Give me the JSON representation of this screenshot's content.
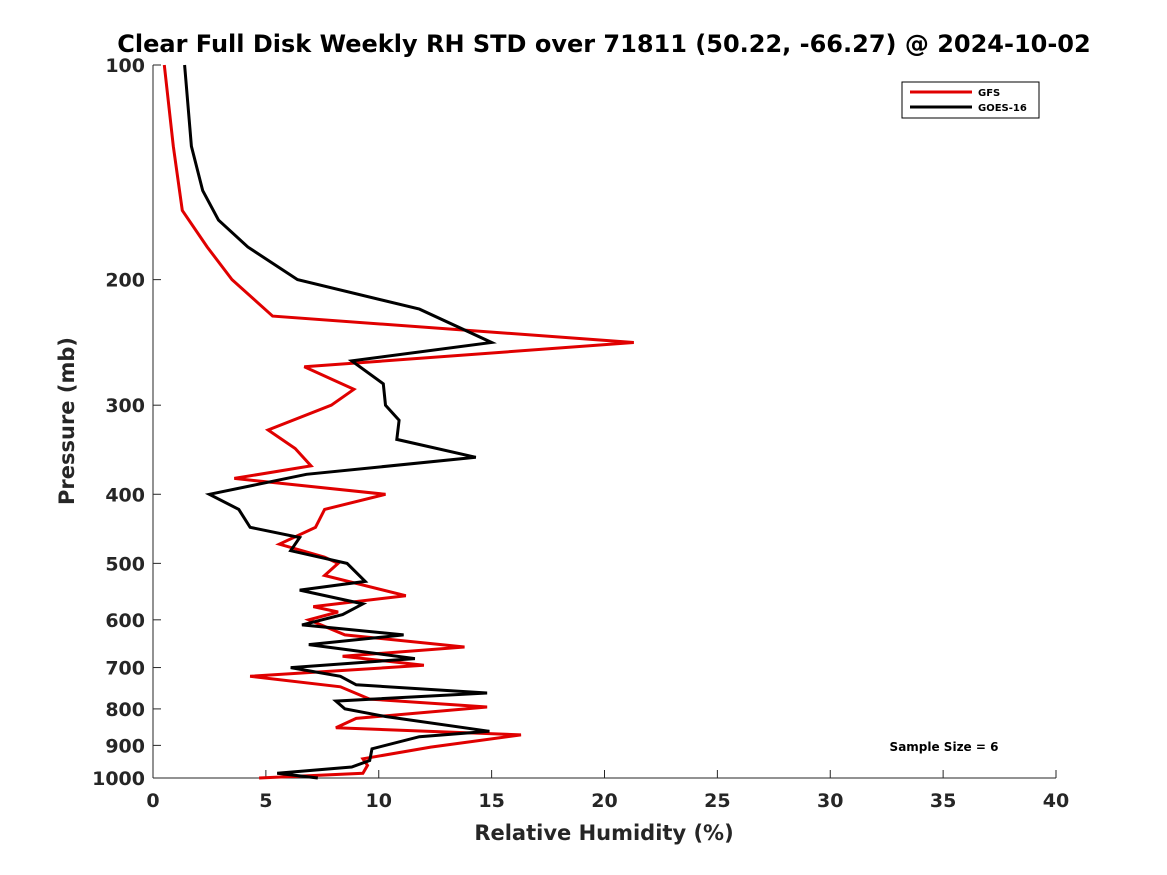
{
  "chart_data": {
    "type": "line",
    "title": "Clear Full Disk Weekly RH STD over 71811 (50.22, -66.27) @ 2024-10-02",
    "xlabel": "Relative Humidity (%)",
    "ylabel": "Pressure (mb)",
    "xlim": [
      0,
      40
    ],
    "ylim": [
      100,
      1000
    ],
    "y_scale": "log",
    "y_reversed": true,
    "x_ticks": [
      0,
      5,
      10,
      15,
      20,
      25,
      30,
      35,
      40
    ],
    "y_ticks": [
      100,
      200,
      300,
      400,
      500,
      600,
      700,
      800,
      900,
      1000
    ],
    "grid": false,
    "legend_position": "top-right",
    "annotation": "Sample Size = 6",
    "series": [
      {
        "name": "GFS",
        "color": "#e00000",
        "x": [
          0.5,
          0.9,
          1.3,
          2.4,
          3.5,
          5.3,
          21.3,
          6.7,
          8.9,
          7.9,
          5.1,
          6.3,
          7.0,
          3.6,
          10.3,
          7.6,
          7.2,
          5.6,
          7.6,
          8.2,
          7.6,
          11.2,
          7.1,
          8.2,
          6.9,
          8.5,
          13.8,
          8.4,
          12.0,
          4.3,
          8.3,
          9.6,
          14.8,
          9.0,
          8.1,
          16.3,
          12.3,
          9.3,
          9.5,
          9.3,
          4.7
        ],
        "y": [
          100,
          130,
          160,
          180,
          200,
          225,
          245,
          265,
          285,
          300,
          325,
          345,
          365,
          380,
          400,
          420,
          445,
          470,
          490,
          500,
          520,
          555,
          575,
          585,
          600,
          630,
          655,
          675,
          695,
          720,
          745,
          775,
          795,
          825,
          850,
          870,
          905,
          940,
          960,
          985,
          1000
        ]
      },
      {
        "name": "GOES-16",
        "color": "#000000",
        "x": [
          1.4,
          1.7,
          2.2,
          2.9,
          4.2,
          6.4,
          11.8,
          15.0,
          8.8,
          10.2,
          10.3,
          10.9,
          10.8,
          14.3,
          6.8,
          2.5,
          3.8,
          4.3,
          6.5,
          6.1,
          8.6,
          9.4,
          6.5,
          9.3,
          8.4,
          6.6,
          11.1,
          6.9,
          11.6,
          6.1,
          8.3,
          9.0,
          14.8,
          8.1,
          8.5,
          10.3,
          14.9,
          11.8,
          9.7,
          9.6,
          8.8,
          5.5,
          7.3
        ],
        "y": [
          100,
          130,
          150,
          165,
          180,
          200,
          220,
          245,
          260,
          280,
          300,
          315,
          335,
          355,
          375,
          400,
          420,
          445,
          460,
          480,
          500,
          530,
          545,
          570,
          590,
          610,
          630,
          650,
          680,
          700,
          720,
          740,
          760,
          780,
          800,
          820,
          860,
          875,
          910,
          945,
          965,
          985,
          1000
        ]
      }
    ]
  }
}
